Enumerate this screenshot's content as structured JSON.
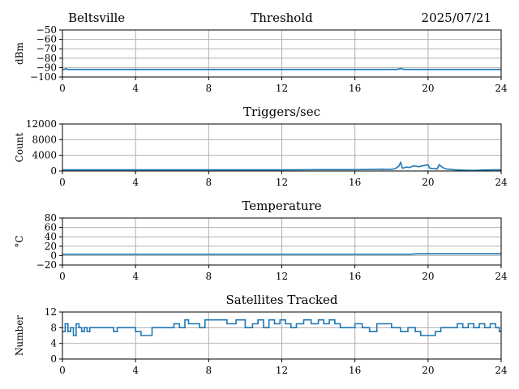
{
  "header": {
    "location": "Beltsville",
    "date": "2025/07/21"
  },
  "colors": {
    "series": "#1f77b4",
    "grid": "#b0b0b0"
  },
  "chart_data": [
    {
      "type": "line",
      "title": "Threshold",
      "ylabel": "dBm",
      "xlim": [
        0,
        24
      ],
      "ylim": [
        -100,
        -50
      ],
      "xticks": [
        0,
        4,
        8,
        12,
        16,
        20,
        24
      ],
      "yticks": [
        -100,
        -90,
        -80,
        -70,
        -60,
        -50
      ],
      "xtick_labels": [
        "0",
        "4",
        "8",
        "12",
        "16",
        "20",
        "24"
      ],
      "ytick_labels": [
        "−100",
        "−90",
        "−80",
        "−70",
        "−60",
        "−50"
      ],
      "grid": true,
      "x": [
        0,
        0.1,
        0.2,
        0.3,
        1,
        4,
        8,
        12,
        16,
        18.3,
        18.5,
        18.7,
        20,
        24
      ],
      "y": [
        -92,
        -92,
        -91,
        -92,
        -92,
        -92,
        -92,
        -92,
        -92,
        -92,
        -91,
        -92,
        -92,
        -92
      ]
    },
    {
      "type": "line",
      "title": "Triggers/sec",
      "ylabel": "Count",
      "xlim": [
        0,
        24
      ],
      "ylim": [
        0,
        12000
      ],
      "xticks": [
        0,
        4,
        8,
        12,
        16,
        20,
        24
      ],
      "yticks": [
        0,
        4000,
        8000,
        12000
      ],
      "xtick_labels": [
        "0",
        "4",
        "8",
        "12",
        "16",
        "20",
        "24"
      ],
      "ytick_labels": [
        "0",
        "4000",
        "8000",
        "12000"
      ],
      "grid": true,
      "x": [
        0,
        1,
        2,
        4,
        6,
        8,
        10,
        12,
        14,
        16,
        17,
        17.5,
        18,
        18.2,
        18.4,
        18.5,
        18.6,
        18.8,
        19,
        19.2,
        19.5,
        19.8,
        20,
        20.1,
        20.3,
        20.5,
        20.6,
        20.8,
        21,
        21.5,
        22,
        22.5,
        23,
        23.5,
        24
      ],
      "y": [
        300,
        300,
        300,
        300,
        300,
        300,
        300,
        300,
        350,
        350,
        400,
        450,
        400,
        600,
        1200,
        2200,
        700,
        1000,
        900,
        1300,
        1100,
        1400,
        1600,
        700,
        600,
        500,
        1600,
        900,
        500,
        300,
        200,
        150,
        250,
        300,
        300
      ]
    },
    {
      "type": "line",
      "title": "Temperature",
      "ylabel": "°C",
      "xlim": [
        0,
        24
      ],
      "ylim": [
        -20,
        80
      ],
      "xticks": [
        0,
        4,
        8,
        12,
        16,
        20,
        24
      ],
      "yticks": [
        -20,
        0,
        20,
        40,
        60,
        80
      ],
      "xtick_labels": [
        "0",
        "4",
        "8",
        "12",
        "16",
        "20",
        "24"
      ],
      "ytick_labels": [
        "−20",
        "0",
        "20",
        "40",
        "60",
        "80"
      ],
      "grid": true,
      "x": [
        0,
        4,
        8,
        12,
        16,
        19,
        19.5,
        20,
        24
      ],
      "y": [
        3,
        3,
        3,
        3,
        3,
        3,
        4,
        4,
        4
      ]
    },
    {
      "type": "line",
      "title": "Satellites Tracked",
      "ylabel": "Number",
      "xlim": [
        0,
        24
      ],
      "ylim": [
        0,
        12
      ],
      "xticks": [
        0,
        4,
        8,
        12,
        16,
        20,
        24
      ],
      "yticks": [
        0,
        4,
        8,
        12
      ],
      "xtick_labels": [
        "0",
        "4",
        "8",
        "12",
        "16",
        "20",
        "24"
      ],
      "ytick_labels": [
        "0",
        "4",
        "8",
        "12"
      ],
      "grid": true,
      "step": true,
      "x": [
        0,
        0.15,
        0.3,
        0.45,
        0.6,
        0.75,
        0.9,
        1.05,
        1.2,
        1.35,
        1.5,
        1.7,
        2,
        2.4,
        2.8,
        3.0,
        3.3,
        3.6,
        4,
        4.3,
        4.5,
        4.9,
        5.4,
        5.8,
        6.1,
        6.4,
        6.7,
        6.9,
        7.2,
        7.5,
        7.8,
        8.0,
        8.5,
        9,
        9.5,
        10,
        10.4,
        10.7,
        11,
        11.3,
        11.6,
        11.9,
        12.2,
        12.5,
        12.8,
        13.2,
        13.6,
        14,
        14.3,
        14.6,
        14.9,
        15.2,
        15.6,
        16,
        16.4,
        16.8,
        17.2,
        17.6,
        18,
        18.5,
        18.9,
        19.3,
        19.6,
        20,
        20.4,
        20.7,
        21,
        21.3,
        21.6,
        21.9,
        22.2,
        22.5,
        22.8,
        23.1,
        23.4,
        23.7,
        23.9
      ],
      "y": [
        7,
        9,
        7,
        8,
        6,
        9,
        8,
        7,
        8,
        7,
        8,
        8,
        8,
        8,
        7,
        8,
        8,
        8,
        7,
        6,
        6,
        8,
        8,
        8,
        9,
        8,
        10,
        9,
        9,
        8,
        10,
        10,
        10,
        9,
        10,
        8,
        9,
        10,
        8,
        10,
        9,
        10,
        9,
        8,
        9,
        10,
        9,
        10,
        9,
        10,
        9,
        8,
        8,
        9,
        8,
        7,
        9,
        9,
        8,
        7,
        8,
        7,
        6,
        6,
        7,
        8,
        8,
        8,
        9,
        8,
        9,
        8,
        9,
        8,
        9,
        8,
        7
      ]
    }
  ]
}
